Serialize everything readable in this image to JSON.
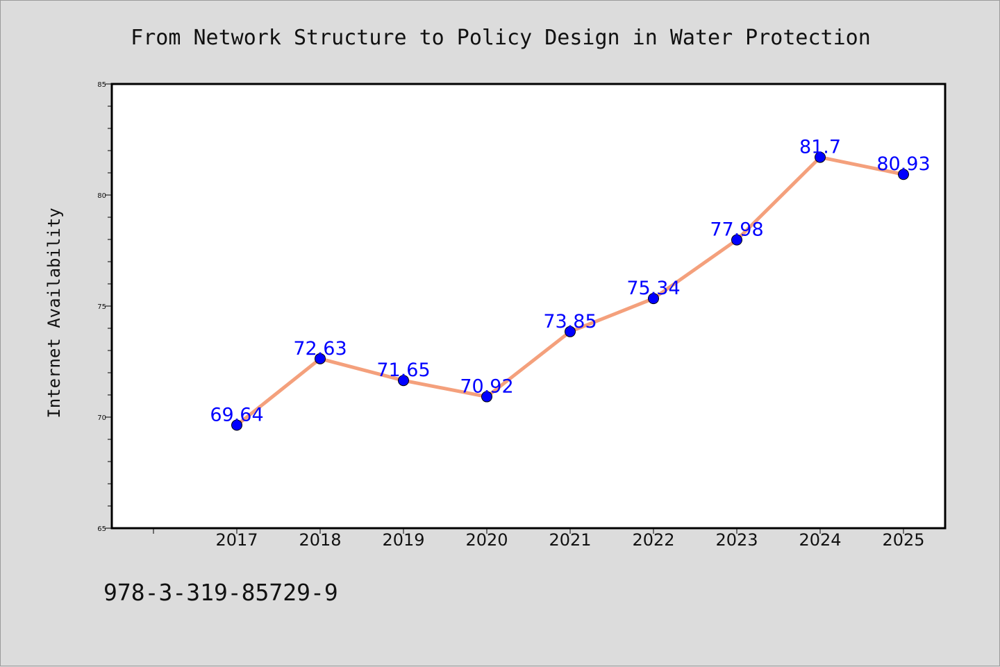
{
  "title": "From Network Structure to Policy Design in Water Protection",
  "isbn": "978-3-319-85729-9",
  "colors": {
    "line": "#f4a07c",
    "marker": "#0000ff",
    "label": "#0000ff",
    "plot_bg": "#ffffff",
    "page_bg": "#dcdcdc"
  },
  "chart_data": {
    "type": "line",
    "title": "From Network Structure to Policy Design in Water Protection",
    "xlabel": "",
    "ylabel": "Internet Availability",
    "categories": [
      "2017",
      "2018",
      "2019",
      "2020",
      "2021",
      "2022",
      "2023",
      "2024",
      "2025"
    ],
    "series": [
      {
        "values": [
          69.64,
          72.63,
          71.65,
          70.92,
          73.85,
          75.34,
          77.98,
          81.7,
          80.93
        ],
        "labels": [
          "69.64",
          "72.63",
          "71.65",
          "70.92",
          "73.85",
          "75.34",
          "77.98",
          "81.7",
          "80.93"
        ]
      }
    ],
    "ylim": [
      65,
      85
    ],
    "yticks": [
      "65",
      "70",
      "75",
      "80",
      "85"
    ],
    "grid": false,
    "legend": "none"
  }
}
